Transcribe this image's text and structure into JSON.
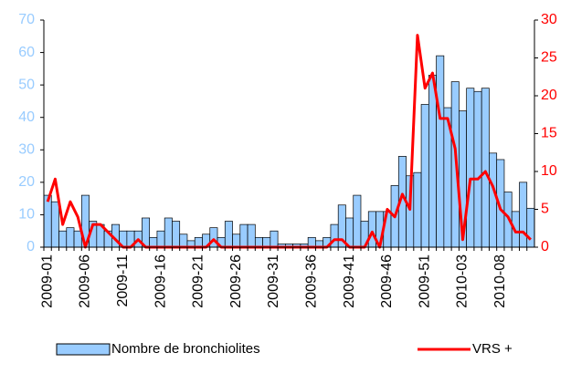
{
  "chart_data": {
    "type": "bar_line",
    "categories": [
      "2009-01",
      null,
      null,
      null,
      null,
      "2009-06",
      null,
      null,
      null,
      null,
      "2009-11",
      null,
      null,
      null,
      null,
      "2009-16",
      null,
      null,
      null,
      null,
      "2009-21",
      null,
      null,
      null,
      null,
      "2009-26",
      null,
      null,
      null,
      null,
      "2009-31",
      null,
      null,
      null,
      null,
      "2009-36",
      null,
      null,
      null,
      null,
      "2009-41",
      null,
      null,
      null,
      null,
      "2009-46",
      null,
      null,
      null,
      null,
      "2009-51",
      null,
      null,
      null,
      null,
      "2010-03",
      null,
      null,
      null,
      null,
      "2010-08",
      null,
      null,
      null,
      null
    ],
    "series": [
      {
        "name": "Nombre de bronchiolites",
        "type": "bar",
        "color": "#99ccff",
        "edge": "#000000",
        "values": [
          16,
          14,
          5,
          6,
          5,
          16,
          8,
          7,
          5,
          7,
          5,
          5,
          5,
          9,
          3,
          5,
          9,
          8,
          4,
          2,
          3,
          4,
          6,
          3,
          8,
          4,
          7,
          7,
          3,
          3,
          5,
          1,
          1,
          1,
          1,
          3,
          2,
          3,
          7,
          13,
          9,
          16,
          8,
          11,
          11,
          11,
          19,
          28,
          22,
          23,
          44,
          53,
          59,
          43,
          51,
          42,
          49,
          48,
          49,
          29,
          27,
          17,
          11,
          20,
          12
        ]
      },
      {
        "name": "VRS +",
        "type": "line",
        "axis": "y2",
        "color": "#ff0000",
        "values": [
          6,
          9,
          3,
          6,
          4,
          0,
          3,
          3,
          2,
          1,
          0,
          0,
          1,
          0,
          0,
          0,
          0,
          0,
          0,
          0,
          0,
          0,
          1,
          0,
          0,
          0,
          0,
          0,
          0,
          0,
          0,
          0,
          0,
          0,
          0,
          0,
          0,
          0,
          1,
          1,
          0,
          0,
          0,
          2,
          0,
          5,
          4,
          7,
          5,
          28,
          21,
          23,
          17,
          17,
          13,
          1,
          9,
          9,
          10,
          8,
          5,
          4,
          2,
          2,
          1
        ]
      }
    ],
    "ylim": [
      0,
      70
    ],
    "yticks": [
      0,
      10,
      20,
      30,
      40,
      50,
      60,
      70
    ],
    "ytick_color": "#99ccff",
    "y2lim": [
      0,
      30
    ],
    "y2ticks": [
      0,
      5,
      10,
      15,
      20,
      25,
      30
    ],
    "y2tick_color": "#ff0000",
    "legend": "bottom"
  }
}
